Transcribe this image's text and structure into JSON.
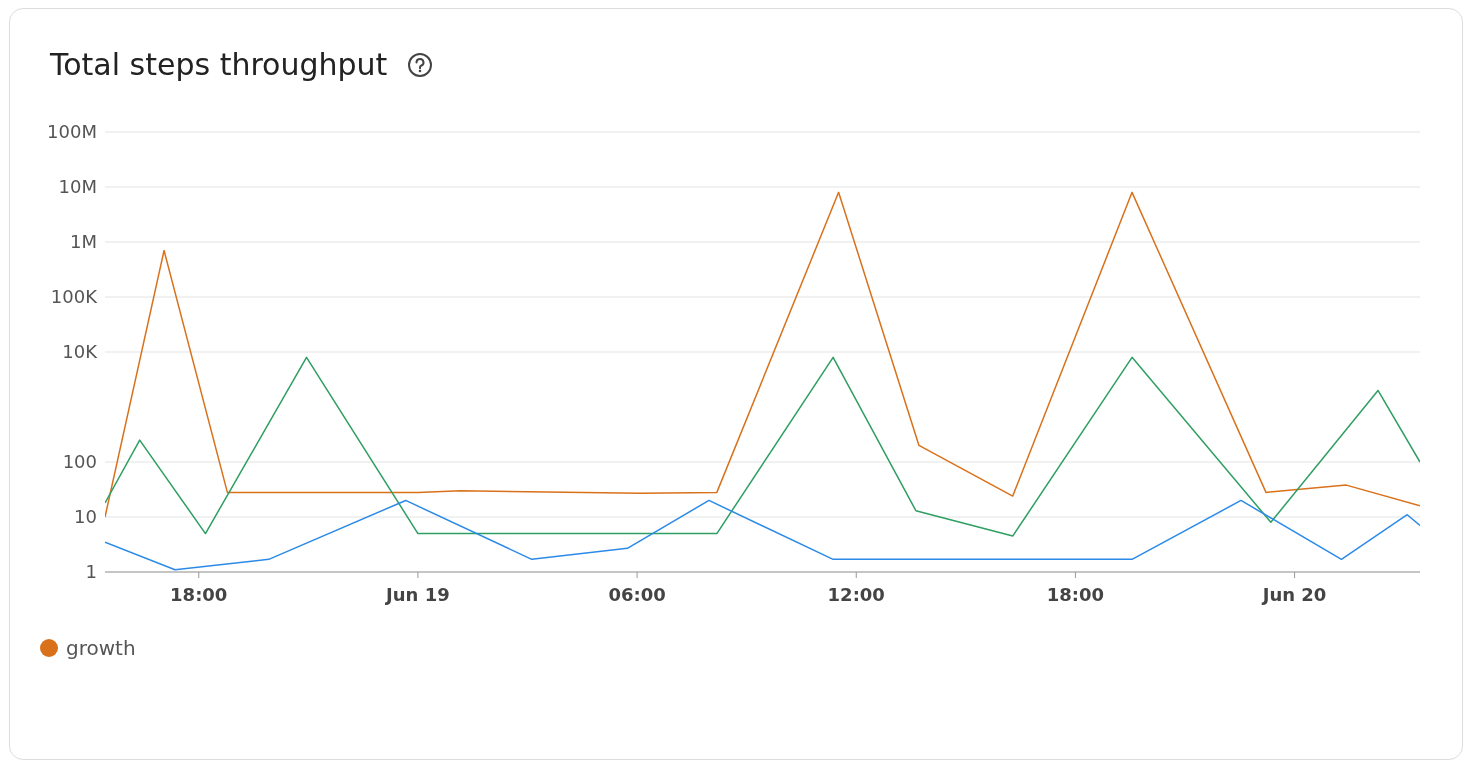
{
  "chart_data": {
    "type": "line",
    "title": "Total steps throughput",
    "log": "y",
    "grid": "y",
    "legend": "bottom left",
    "marker": "none",
    "line_style": "solid",
    "xlim": [
      "--06-18T15:26",
      "--06-20T03:26"
    ],
    "xticks": [
      {
        "value": "--06-18T18:00",
        "label": "18:00"
      },
      {
        "value": "--06-19T00:00",
        "label": "Jun 19"
      },
      {
        "value": "--06-19T06:00",
        "label": "06:00"
      },
      {
        "value": "--06-19T12:00",
        "label": "12:00"
      },
      {
        "value": "--06-19T18:00",
        "label": "18:00"
      },
      {
        "value": "--06-20T00:00",
        "label": "Jun 20"
      }
    ],
    "ylim": [
      1,
      100000000
    ],
    "yticks": [
      1,
      10,
      100,
      {
        "value": 10000,
        "label": "10K"
      },
      {
        "value": 100000,
        "label": "100K"
      },
      {
        "value": 1000000,
        "label": "1M"
      },
      {
        "value": 10000000,
        "label": "10M"
      },
      {
        "value": 100000000,
        "label": "100M"
      }
    ],
    "series": [
      {
        "name": "growth",
        "color": "#d9711b",
        "x": [
          "--06-18T15:26",
          "--06-18T17:03",
          "--06-18T18:47",
          "--06-19T00:00",
          "--06-19T01:10",
          "--06-19T06:05",
          "--06-19T08:11",
          "--06-19T11:31",
          "--06-19T13:43",
          "--06-19T16:17",
          "--06-19T19:33",
          "--06-19T23:13",
          "--06-20T01:25",
          "--06-20T03:26"
        ],
        "values": [
          10,
          700000,
          28,
          28,
          30,
          27,
          28,
          8000000,
          200,
          24,
          8000000,
          28,
          38,
          16
        ]
      },
      {
        "color": "#2e9e62",
        "x": [
          "--06-18T15:26",
          "--06-18T16:23",
          "--06-18T18:11",
          "--06-18T20:57",
          "--06-19T00:00",
          "--06-19T08:11",
          "--06-19T11:22",
          "--06-19T13:38",
          "--06-19T16:17",
          "--06-19T19:33",
          "--06-19T23:21",
          "--06-20T02:17",
          "--06-20T03:26"
        ],
        "values": [
          18,
          250,
          5,
          8000,
          5,
          5,
          8000,
          13,
          4.5,
          8000,
          8,
          2000,
          100
        ]
      },
      {
        "color": "#2b8ae8",
        "x": [
          "--06-18T15:26",
          "--06-18T17:21",
          "--06-18T19:55",
          "--06-18T23:40",
          "--06-19T03:07",
          "--06-19T05:44",
          "--06-19T07:58",
          "--06-19T11:22",
          "--06-19T19:33",
          "--06-19T22:32",
          "--06-20T01:17",
          "--06-20T03:05",
          "--06-20T03:26"
        ],
        "values": [
          3.5,
          1.1,
          1.7,
          20,
          1.7,
          2.7,
          20,
          1.7,
          1.7,
          20,
          1.7,
          11,
          7
        ]
      }
    ]
  }
}
